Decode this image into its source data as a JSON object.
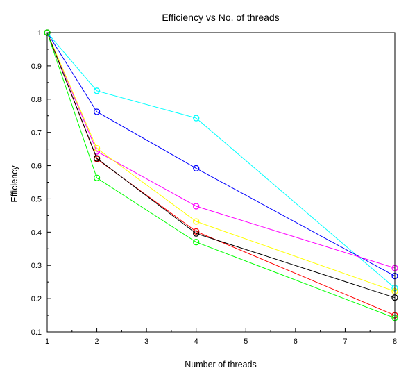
{
  "chart_data": {
    "type": "line",
    "title": "Efficiency vs No. of threads",
    "xlabel": "Number of threads",
    "ylabel": "Efficiency",
    "xlim": [
      1,
      8
    ],
    "ylim": [
      0.1,
      1
    ],
    "xticks": [
      "1",
      "2",
      "3",
      "4",
      "5",
      "6",
      "7",
      "8"
    ],
    "yticks": [
      "0.1",
      "0.2",
      "0.3",
      "0.4",
      "0.5",
      "0.6",
      "0.7",
      "0.8",
      "0.9",
      "1"
    ],
    "grid": false,
    "x": [
      1,
      2,
      4,
      8
    ],
    "series": [
      {
        "color": "#00ffff",
        "values": [
          1,
          0.825,
          0.743,
          0.232
        ]
      },
      {
        "color": "#0000ff",
        "values": [
          1,
          0.762,
          0.592,
          0.268
        ]
      },
      {
        "color": "#ff00ff",
        "values": [
          1,
          0.643,
          0.478,
          0.292
        ]
      },
      {
        "color": "#ffff00",
        "values": [
          1,
          0.652,
          0.432,
          0.222
        ]
      },
      {
        "color": "#ff0000",
        "values": [
          1,
          0.62,
          0.402,
          0.15
        ]
      },
      {
        "color": "#000000",
        "values": [
          1,
          0.622,
          0.396,
          0.203
        ]
      },
      {
        "color": "#00ff00",
        "values": [
          1,
          0.563,
          0.37,
          0.142
        ]
      }
    ]
  }
}
